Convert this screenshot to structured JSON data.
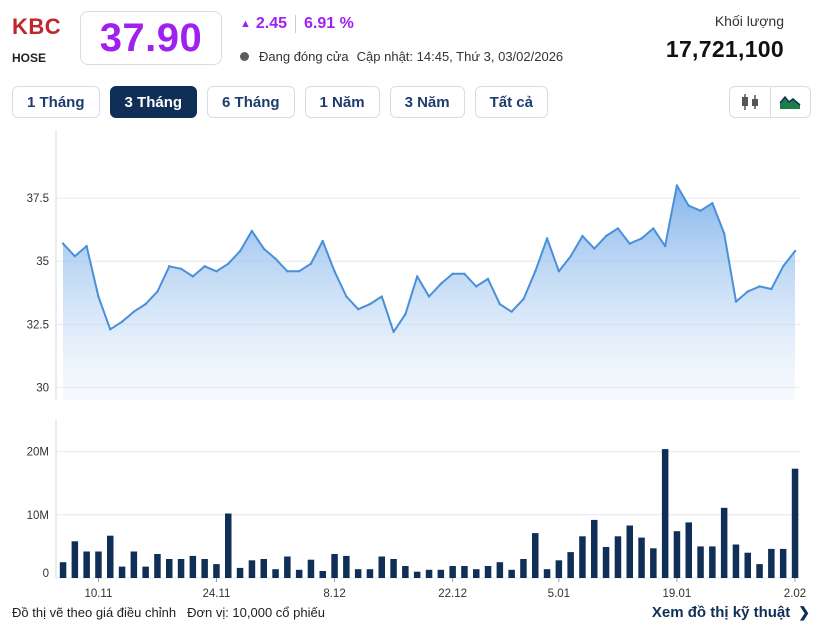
{
  "header": {
    "symbol": "KBC",
    "exchange": "HOSE",
    "price": "37.90",
    "change": "2.45",
    "change_pct": "6.91 %",
    "market_status": "Đang đóng cửa",
    "updated": "Cập nhật: 14:45, Thứ 3, 03/02/2026",
    "volume_label": "Khối lượng",
    "volume_value": "17,721,100"
  },
  "colors": {
    "ticker_red": "#c0272d",
    "price_purple": "#a020f0",
    "line_blue": "#4a90d9",
    "bar_navy": "#0f2f57",
    "active_tab": "#0f2f57"
  },
  "tabs": [
    {
      "label": "1 Tháng",
      "active": false
    },
    {
      "label": "3 Tháng",
      "active": true
    },
    {
      "label": "6 Tháng",
      "active": false
    },
    {
      "label": "1 Năm",
      "active": false
    },
    {
      "label": "3 Năm",
      "active": false
    },
    {
      "label": "Tất cả",
      "active": false
    }
  ],
  "chart_type_icons": [
    "candlestick-icon",
    "area-chart-icon"
  ],
  "footer": {
    "note": "Đồ thị vẽ theo giá điều chỉnh",
    "unit": "Đơn vị: 10,000 cổ phiếu",
    "link": "Xem đồ thị kỹ thuật"
  },
  "chart_data": [
    {
      "type": "area",
      "ylim": [
        29.5,
        40.2
      ],
      "y_ticks": [
        {
          "v": 30,
          "label": "30"
        },
        {
          "v": 32.5,
          "label": "32.5"
        },
        {
          "v": 35,
          "label": "35"
        },
        {
          "v": 37.5,
          "label": "37.5"
        }
      ],
      "grid": true,
      "values": [
        35.7,
        35.2,
        35.6,
        33.6,
        32.3,
        32.6,
        33.0,
        33.3,
        33.8,
        34.8,
        34.7,
        34.4,
        34.8,
        34.6,
        34.9,
        35.4,
        36.2,
        35.5,
        35.1,
        34.6,
        34.6,
        34.9,
        35.8,
        34.6,
        33.6,
        33.1,
        33.3,
        33.6,
        32.2,
        32.9,
        34.4,
        33.6,
        34.1,
        34.5,
        34.5,
        34.0,
        34.3,
        33.3,
        33.0,
        33.5,
        34.6,
        35.9,
        34.6,
        35.2,
        36.0,
        35.5,
        36.0,
        36.3,
        35.7,
        35.9,
        36.3,
        35.6,
        38.0,
        37.2,
        37.0,
        37.3,
        36.1,
        33.4,
        33.8,
        34.0,
        33.9,
        34.8,
        35.4
      ]
    },
    {
      "type": "bar",
      "ylim": [
        0,
        25
      ],
      "y_ticks": [
        {
          "v": 0,
          "label": "0"
        },
        {
          "v": 10,
          "label": "10M"
        },
        {
          "v": 20,
          "label": "20M"
        }
      ],
      "x_ticks": [
        {
          "i": 3,
          "label": "10.11"
        },
        {
          "i": 13,
          "label": "24.11"
        },
        {
          "i": 23,
          "label": "8.12"
        },
        {
          "i": 33,
          "label": "22.12"
        },
        {
          "i": 42,
          "label": "5.01"
        },
        {
          "i": 52,
          "label": "19.01"
        },
        {
          "i": 62,
          "label": "2.02"
        }
      ],
      "grid": true,
      "values": [
        2.5,
        5.8,
        4.2,
        4.2,
        6.7,
        1.8,
        4.2,
        1.8,
        3.8,
        3.0,
        3.0,
        3.5,
        3.0,
        2.2,
        10.2,
        1.6,
        2.8,
        3.0,
        1.4,
        3.4,
        1.3,
        2.9,
        1.1,
        3.8,
        3.5,
        1.4,
        1.4,
        3.4,
        3.0,
        1.9,
        1.0,
        1.3,
        1.3,
        1.9,
        1.9,
        1.4,
        1.9,
        2.5,
        1.3,
        3.0,
        7.1,
        1.4,
        2.8,
        4.1,
        6.6,
        9.2,
        4.9,
        6.6,
        8.3,
        6.4,
        4.7,
        20.4,
        7.4,
        8.8,
        5.0,
        5.0,
        11.1,
        5.3,
        4.0,
        2.2,
        4.6,
        4.6,
        17.3
      ]
    }
  ]
}
